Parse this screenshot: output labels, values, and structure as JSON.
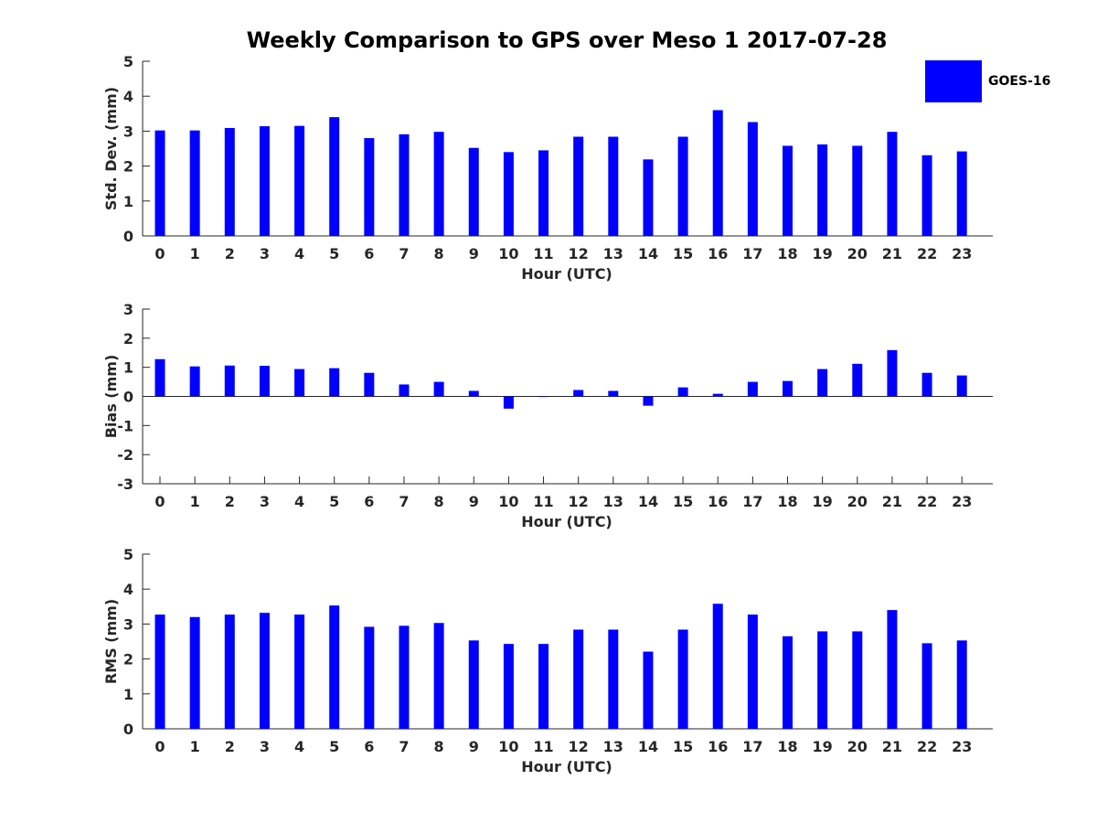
{
  "title": "Weekly Comparison to GPS over Meso 1 2017-07-28",
  "legend": {
    "label": "GOES-16",
    "color": "#0000ff"
  },
  "chart_data": [
    {
      "type": "bar",
      "ylabel": "Std. Dev. (mm)",
      "xlabel": "Hour (UTC)",
      "categories": [
        "0",
        "1",
        "2",
        "3",
        "4",
        "5",
        "6",
        "7",
        "8",
        "9",
        "10",
        "11",
        "12",
        "13",
        "14",
        "15",
        "16",
        "17",
        "18",
        "19",
        "20",
        "21",
        "22",
        "23"
      ],
      "ylim": [
        0,
        5
      ],
      "yticks": [
        "0",
        "1",
        "2",
        "3",
        "4",
        "5"
      ],
      "series": [
        {
          "name": "GOES-16",
          "values": [
            3.02,
            3.02,
            3.09,
            3.14,
            3.15,
            3.4,
            2.8,
            2.91,
            2.98,
            2.52,
            2.4,
            2.45,
            2.84,
            2.84,
            2.19,
            2.84,
            3.6,
            3.26,
            2.58,
            2.62,
            2.58,
            2.98,
            2.31,
            2.42
          ]
        }
      ]
    },
    {
      "type": "bar",
      "ylabel": "Bias (mm)",
      "xlabel": "Hour (UTC)",
      "categories": [
        "0",
        "1",
        "2",
        "3",
        "4",
        "5",
        "6",
        "7",
        "8",
        "9",
        "10",
        "11",
        "12",
        "13",
        "14",
        "15",
        "16",
        "17",
        "18",
        "19",
        "20",
        "21",
        "22",
        "23"
      ],
      "ylim": [
        -3,
        3
      ],
      "yticks": [
        "-3",
        "-2",
        "-1",
        "0",
        "1",
        "2",
        "3"
      ],
      "series": [
        {
          "name": "GOES-16",
          "values": [
            1.28,
            1.03,
            1.06,
            1.05,
            0.94,
            0.97,
            0.81,
            0.41,
            0.5,
            0.19,
            -0.42,
            -0.02,
            0.22,
            0.19,
            -0.32,
            0.31,
            0.09,
            0.5,
            0.53,
            0.94,
            1.12,
            1.59,
            0.81,
            0.72
          ]
        }
      ]
    },
    {
      "type": "bar",
      "ylabel": "RMS (mm)",
      "xlabel": "Hour (UTC)",
      "categories": [
        "0",
        "1",
        "2",
        "3",
        "4",
        "5",
        "6",
        "7",
        "8",
        "9",
        "10",
        "11",
        "12",
        "13",
        "14",
        "15",
        "16",
        "17",
        "18",
        "19",
        "20",
        "21",
        "22",
        "23"
      ],
      "ylim": [
        0,
        5
      ],
      "yticks": [
        "0",
        "1",
        "2",
        "3",
        "4",
        "5"
      ],
      "series": [
        {
          "name": "GOES-16",
          "values": [
            3.27,
            3.2,
            3.27,
            3.32,
            3.27,
            3.53,
            2.92,
            2.95,
            3.03,
            2.53,
            2.43,
            2.43,
            2.84,
            2.84,
            2.21,
            2.84,
            3.58,
            3.27,
            2.65,
            2.79,
            2.79,
            3.4,
            2.45,
            2.53
          ]
        }
      ]
    }
  ]
}
